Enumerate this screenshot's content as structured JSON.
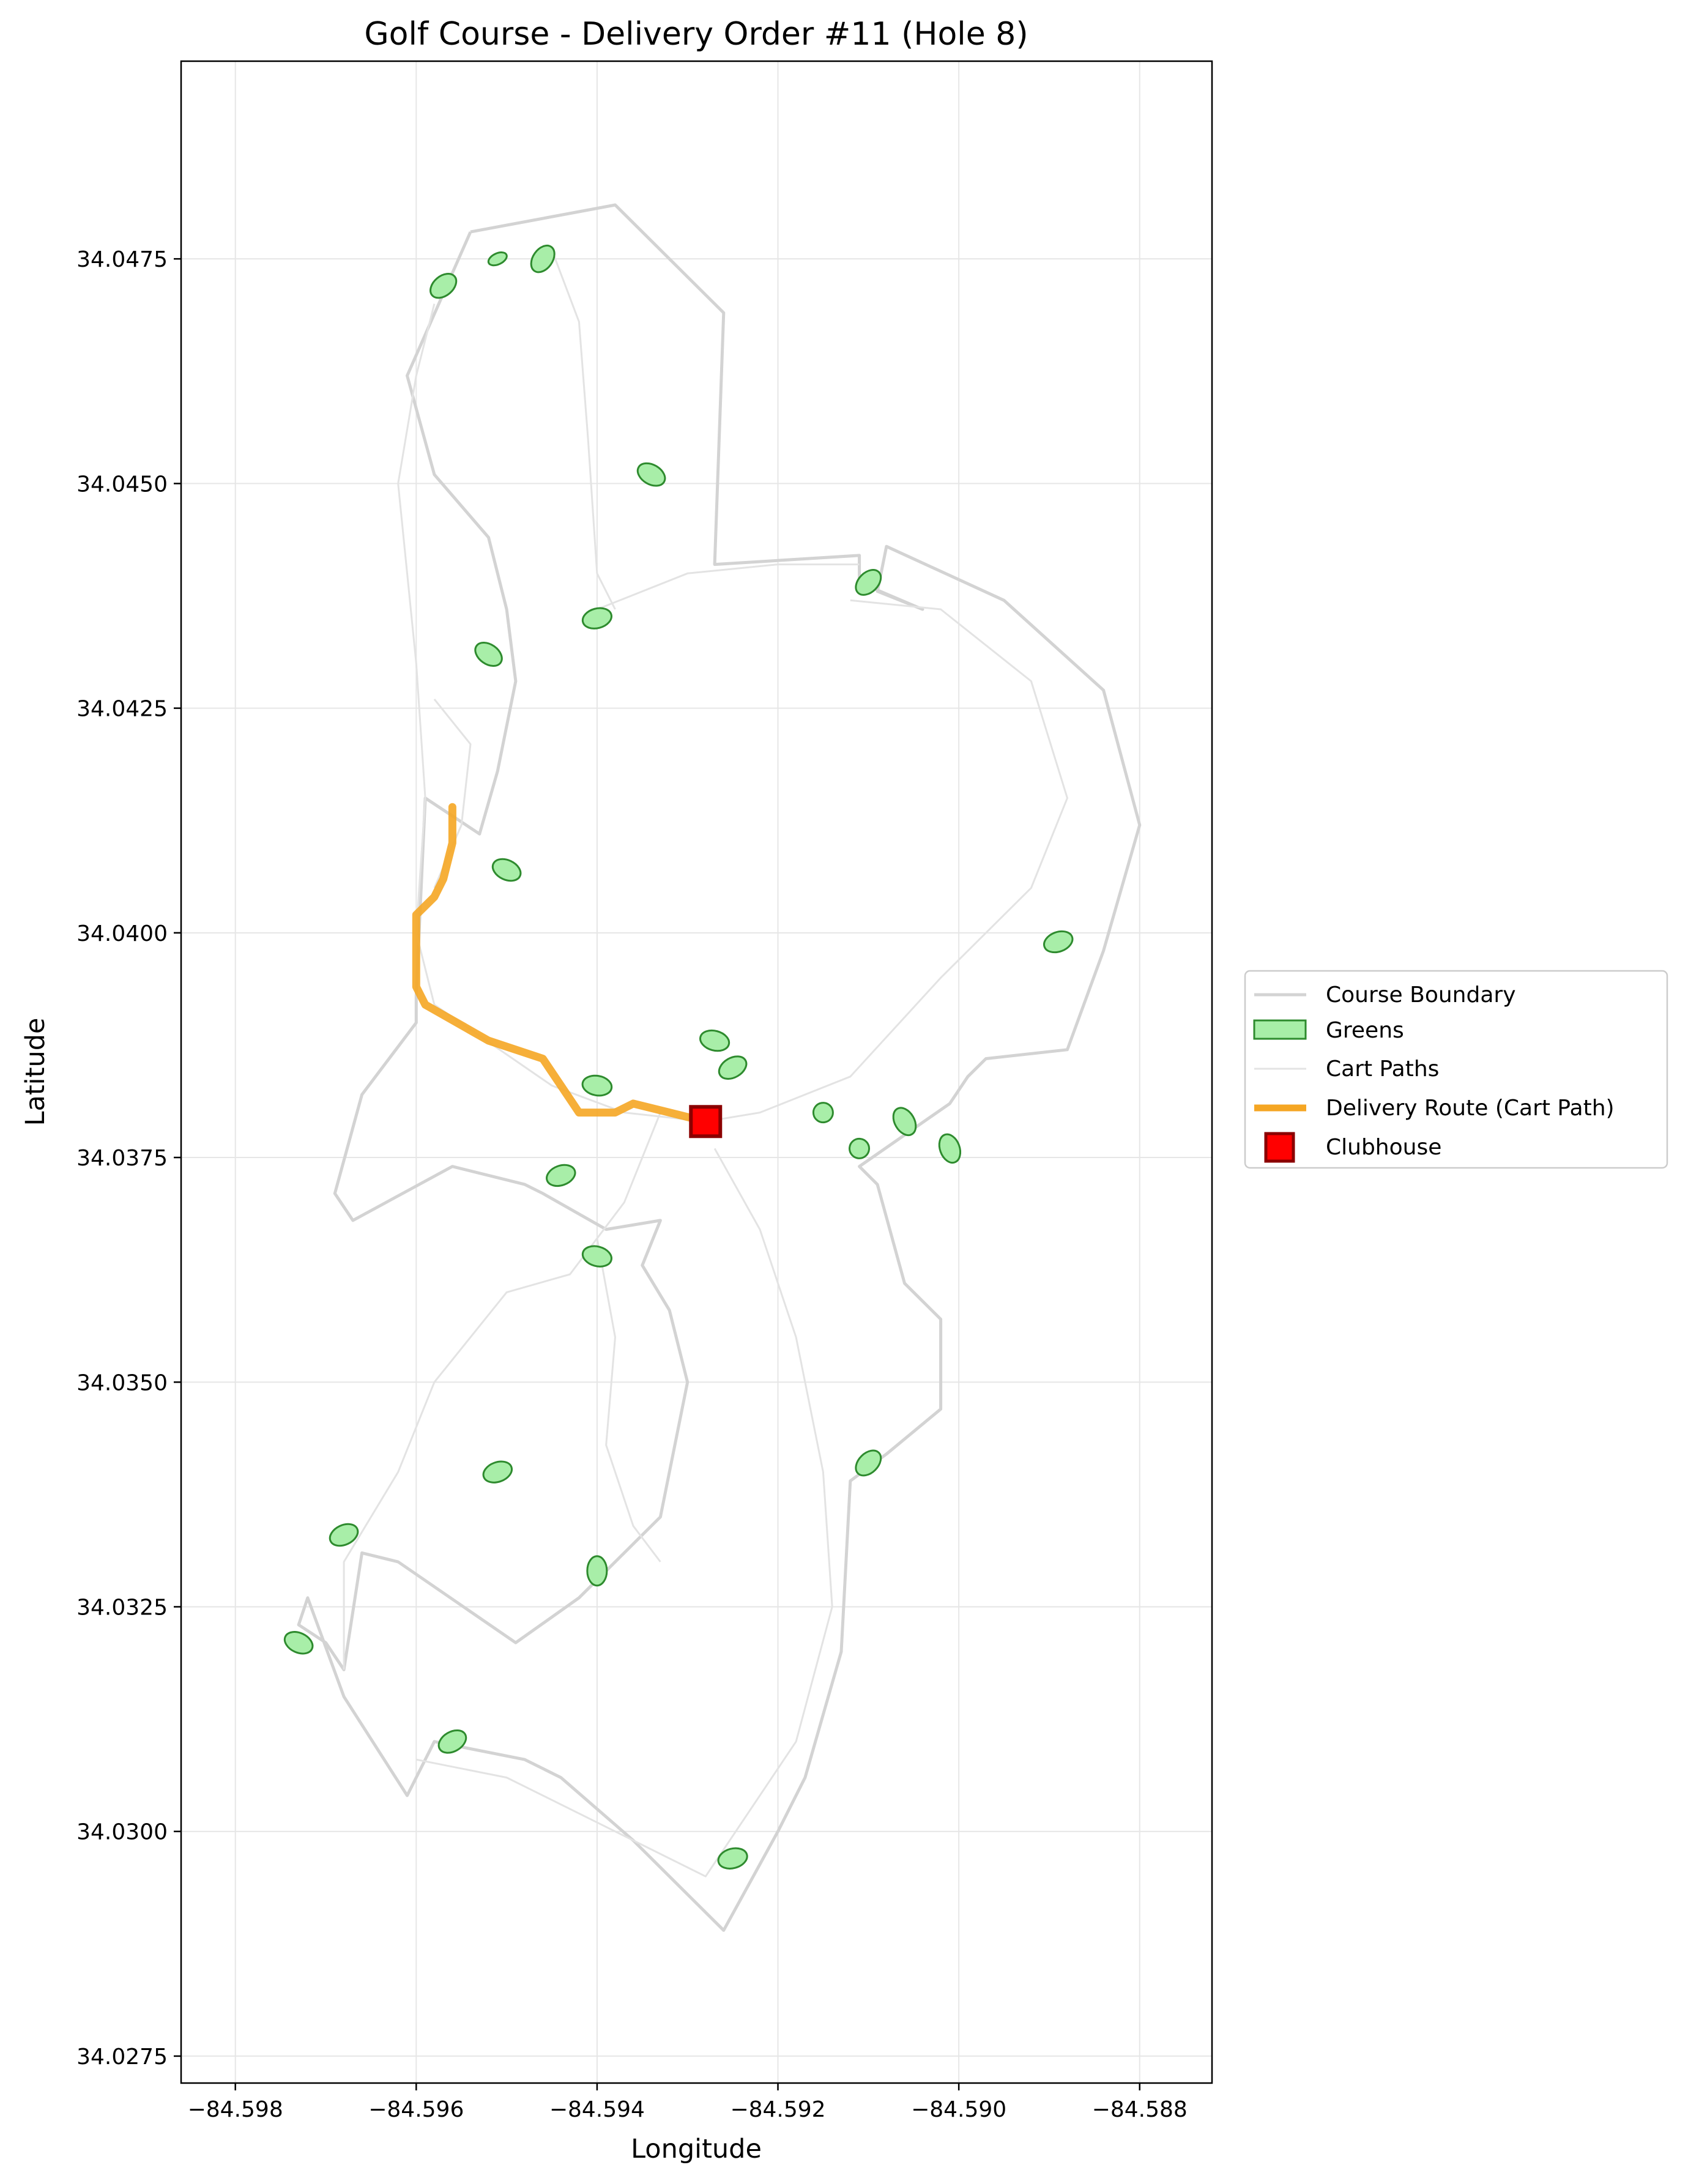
{
  "title": "Golf Course - Delivery Order #11 (Hole 8)",
  "xlabel": "Longitude",
  "ylabel": "Latitude",
  "colors": {
    "boundary": "#d3d3d3",
    "cart_paths": "#e3e3e3",
    "green_fill": "#a8eea8",
    "green_edge": "#2e8b2e",
    "route": "#f5a623",
    "clubhouse_fill": "#ff0000",
    "clubhouse_edge": "#8b0000",
    "grid": "#e6e6e6"
  },
  "legend": {
    "items": [
      {
        "key": "boundary",
        "label": "Course Boundary"
      },
      {
        "key": "greens",
        "label": "Greens"
      },
      {
        "key": "cart_paths",
        "label": "Cart Paths"
      },
      {
        "key": "route",
        "label": "Delivery Route (Cart Path)"
      },
      {
        "key": "clubhouse",
        "label": "Clubhouse"
      }
    ]
  },
  "chart_data": {
    "type": "map",
    "xlim": [
      -84.5986,
      -84.5872
    ],
    "ylim": [
      34.0272,
      34.0497
    ],
    "grid": true,
    "legend_position": "right",
    "xticks": [
      {
        "value": -84.598,
        "label": "−84.598"
      },
      {
        "value": -84.596,
        "label": "−84.596"
      },
      {
        "value": -84.594,
        "label": "−84.594"
      },
      {
        "value": -84.592,
        "label": "−84.592"
      },
      {
        "value": -84.59,
        "label": "−84.590"
      },
      {
        "value": -84.588,
        "label": "−84.588"
      }
    ],
    "yticks": [
      {
        "value": 34.0275,
        "label": "34.0275"
      },
      {
        "value": 34.03,
        "label": "34.0300"
      },
      {
        "value": 34.0325,
        "label": "34.0325"
      },
      {
        "value": 34.035,
        "label": "34.0350"
      },
      {
        "value": 34.0375,
        "label": "34.0375"
      },
      {
        "value": 34.04,
        "label": "34.0400"
      },
      {
        "value": 34.0425,
        "label": "34.0425"
      },
      {
        "value": 34.045,
        "label": "34.0450"
      },
      {
        "value": 34.0475,
        "label": "34.0475"
      }
    ],
    "boundary": [
      [
        -84.5954,
        34.0478
      ],
      [
        -84.5938,
        34.0481
      ],
      [
        -84.5926,
        34.0469
      ],
      [
        -84.5927,
        34.0441
      ],
      [
        -84.5911,
        34.0442
      ],
      [
        -84.5911,
        34.0439
      ],
      [
        -84.5904,
        34.0436
      ],
      [
        -84.5909,
        34.0438
      ],
      [
        -84.5908,
        34.0443
      ],
      [
        -84.5895,
        34.0437
      ],
      [
        -84.5884,
        34.0427
      ],
      [
        -84.588,
        34.0412
      ],
      [
        -84.5884,
        34.0398
      ],
      [
        -84.5888,
        34.0387
      ],
      [
        -84.5897,
        34.0386
      ],
      [
        -84.5899,
        34.0384
      ],
      [
        -84.5901,
        34.0381
      ],
      [
        -84.5911,
        34.0374
      ],
      [
        -84.5909,
        34.0372
      ],
      [
        -84.5906,
        34.0361
      ],
      [
        -84.5902,
        34.0357
      ],
      [
        -84.5902,
        34.0347
      ],
      [
        -84.5908,
        34.0342
      ],
      [
        -84.5912,
        34.0339
      ],
      [
        -84.5913,
        34.032
      ],
      [
        -84.5915,
        34.0313
      ],
      [
        -84.5917,
        34.0306
      ],
      [
        -84.592,
        34.03
      ],
      [
        -84.5926,
        34.0289
      ],
      [
        -84.5936,
        34.0299
      ],
      [
        -84.5944,
        34.0306
      ],
      [
        -84.5948,
        34.0308
      ],
      [
        -84.5958,
        34.031
      ],
      [
        -84.5961,
        34.0304
      ],
      [
        -84.5968,
        34.0315
      ],
      [
        -84.5972,
        34.0326
      ],
      [
        -84.5973,
        34.0323
      ],
      [
        -84.597,
        34.0321
      ],
      [
        -84.5968,
        34.0318
      ],
      [
        -84.5966,
        34.0331
      ],
      [
        -84.5962,
        34.033
      ],
      [
        -84.5949,
        34.0321
      ],
      [
        -84.5942,
        34.0326
      ],
      [
        -84.5935,
        34.0333
      ],
      [
        -84.5933,
        34.0335
      ],
      [
        -84.593,
        34.035
      ],
      [
        -84.5932,
        34.0358
      ],
      [
        -84.5935,
        34.0363
      ],
      [
        -84.5933,
        34.0368
      ],
      [
        -84.5939,
        34.0367
      ],
      [
        -84.5946,
        34.0371
      ],
      [
        -84.5948,
        34.0372
      ],
      [
        -84.5956,
        34.0374
      ],
      [
        -84.5967,
        34.0368
      ],
      [
        -84.5969,
        34.0371
      ],
      [
        -84.5966,
        34.0382
      ],
      [
        -84.596,
        34.039
      ],
      [
        -84.596,
        34.0393
      ],
      [
        -84.5959,
        34.0415
      ],
      [
        -84.5953,
        34.0411
      ],
      [
        -84.5951,
        34.0418
      ],
      [
        -84.5949,
        34.0428
      ],
      [
        -84.595,
        34.0436
      ],
      [
        -84.5952,
        34.0444
      ],
      [
        -84.5958,
        34.0451
      ],
      [
        -84.5961,
        34.0462
      ],
      [
        -84.5954,
        34.0478
      ]
    ],
    "cart_paths": [
      [
        [
          -84.5945,
          34.0476
        ],
        [
          -84.5942,
          34.0468
        ],
        [
          -84.5941,
          34.0455
        ],
        [
          -84.594,
          34.044
        ],
        [
          -84.5938,
          34.0436
        ]
      ],
      [
        [
          -84.5958,
          34.047
        ],
        [
          -84.596,
          34.0462
        ],
        [
          -84.5962,
          34.045
        ],
        [
          -84.596,
          34.043
        ],
        [
          -84.5959,
          34.0415
        ],
        [
          -84.596,
          34.04
        ],
        [
          -84.5958,
          34.0392
        ],
        [
          -84.5945,
          34.0383
        ],
        [
          -84.5937,
          34.038
        ],
        [
          -84.5928,
          34.0379
        ]
      ],
      [
        [
          -84.5928,
          34.0379
        ],
        [
          -84.5922,
          34.038
        ],
        [
          -84.5912,
          34.0384
        ],
        [
          -84.5902,
          34.0395
        ],
        [
          -84.5892,
          34.0405
        ],
        [
          -84.5888,
          34.0415
        ],
        [
          -84.5892,
          34.0428
        ],
        [
          -84.5902,
          34.0436
        ],
        [
          -84.5912,
          34.0437
        ]
      ],
      [
        [
          -84.5927,
          34.0376
        ],
        [
          -84.5922,
          34.0367
        ],
        [
          -84.5918,
          34.0355
        ],
        [
          -84.5915,
          34.034
        ],
        [
          -84.5914,
          34.0325
        ],
        [
          -84.5918,
          34.031
        ],
        [
          -84.5928,
          34.0295
        ],
        [
          -84.5938,
          34.03
        ],
        [
          -84.595,
          34.0306
        ],
        [
          -84.596,
          34.0308
        ]
      ],
      [
        [
          -84.5933,
          34.038
        ],
        [
          -84.5937,
          34.037
        ],
        [
          -84.5943,
          34.0362
        ],
        [
          -84.595,
          34.036
        ],
        [
          -84.5958,
          34.035
        ],
        [
          -84.5962,
          34.034
        ],
        [
          -84.5968,
          34.033
        ],
        [
          -84.5968,
          34.0318
        ]
      ],
      [
        [
          -84.594,
          34.0366
        ],
        [
          -84.5938,
          34.0355
        ],
        [
          -84.5939,
          34.0343
        ],
        [
          -84.5936,
          34.0334
        ],
        [
          -84.5933,
          34.033
        ]
      ],
      [
        [
          -84.5958,
          34.0405
        ],
        [
          -84.5955,
          34.0412
        ],
        [
          -84.5954,
          34.0421
        ],
        [
          -84.5958,
          34.0426
        ]
      ],
      [
        [
          -84.594,
          34.0436
        ],
        [
          -84.593,
          34.044
        ],
        [
          -84.592,
          34.0441
        ],
        [
          -84.5911,
          34.0441
        ]
      ]
    ],
    "greens": [
      {
        "lon": -84.5957,
        "lat": 34.0472
      },
      {
        "lon": -84.5951,
        "lat": 34.0475
      },
      {
        "lon": -84.5946,
        "lat": 34.0475
      },
      {
        "lon": -84.5934,
        "lat": 34.0451
      },
      {
        "lon": -84.594,
        "lat": 34.0435
      },
      {
        "lon": -84.5952,
        "lat": 34.0431
      },
      {
        "lon": -84.591,
        "lat": 34.0439
      },
      {
        "lon": -84.595,
        "lat": 34.0407
      },
      {
        "lon": -84.5889,
        "lat": 34.0399
      },
      {
        "lon": -84.5927,
        "lat": 34.0388
      },
      {
        "lon": -84.5925,
        "lat": 34.0385
      },
      {
        "lon": -84.594,
        "lat": 34.0383
      },
      {
        "lon": -84.5915,
        "lat": 34.038
      },
      {
        "lon": -84.5906,
        "lat": 34.0379
      },
      {
        "lon": -84.5911,
        "lat": 34.0376
      },
      {
        "lon": -84.5901,
        "lat": 34.0376
      },
      {
        "lon": -84.5944,
        "lat": 34.0373
      },
      {
        "lon": -84.594,
        "lat": 34.0364
      },
      {
        "lon": -84.591,
        "lat": 34.0341
      },
      {
        "lon": -84.5951,
        "lat": 34.034
      },
      {
        "lon": -84.5968,
        "lat": 34.0333
      },
      {
        "lon": -84.594,
        "lat": 34.0329
      },
      {
        "lon": -84.5973,
        "lat": 34.0321
      },
      {
        "lon": -84.5956,
        "lat": 34.031
      },
      {
        "lon": -84.5925,
        "lat": 34.0297
      }
    ],
    "route": [
      [
        -84.5956,
        34.0414
      ],
      [
        -84.5956,
        34.041
      ],
      [
        -84.5957,
        34.0406
      ],
      [
        -84.5958,
        34.0404
      ],
      [
        -84.596,
        34.0402
      ],
      [
        -84.596,
        34.0398
      ],
      [
        -84.596,
        34.0394
      ],
      [
        -84.5959,
        34.0392
      ],
      [
        -84.5952,
        34.0388
      ],
      [
        -84.5946,
        34.0386
      ],
      [
        -84.5944,
        34.0383
      ],
      [
        -84.5942,
        34.038
      ],
      [
        -84.5938,
        34.038
      ],
      [
        -84.5936,
        34.0381
      ],
      [
        -84.5932,
        34.038
      ],
      [
        -84.5928,
        34.0379
      ]
    ],
    "clubhouse": {
      "lon": -84.5928,
      "lat": 34.0379
    }
  }
}
